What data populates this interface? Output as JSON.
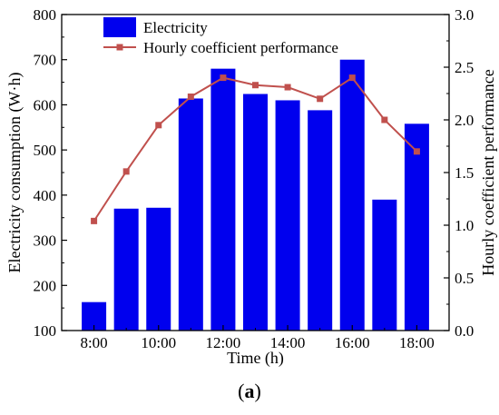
{
  "caption": {
    "open": "(",
    "letter": "a",
    "close": ")"
  },
  "chart_data": {
    "type": "bar",
    "x": [
      8,
      9,
      10,
      11,
      12,
      13,
      14,
      15,
      16,
      17,
      18
    ],
    "xlabel": "Time (h)",
    "xticks": [
      8,
      10,
      12,
      14,
      16,
      18
    ],
    "xtick_labels": [
      "8:00",
      "10:00",
      "12:00",
      "14:00",
      "16:00",
      "18:00"
    ],
    "xlim": [
      7,
      19
    ],
    "ylabel": "Electricity consumption (W·h)",
    "ylim": [
      100,
      800
    ],
    "yticks": [
      100,
      200,
      300,
      400,
      500,
      600,
      700,
      800
    ],
    "y2label": "Hourly coefficient performance",
    "y2lim": [
      0,
      3
    ],
    "y2ticks": [
      "0.0",
      "0.5",
      "1.0",
      "1.5",
      "2.0",
      "2.5",
      "3.0"
    ],
    "legend_position": "top-left",
    "grid": false,
    "series": [
      {
        "name": "Electricity",
        "type": "bar",
        "axis": "left",
        "color": "#0000ee",
        "values": [
          163,
          370,
          372,
          614,
          680,
          624,
          610,
          588,
          700,
          390,
          558
        ]
      },
      {
        "name": "Hourly coefficient performance",
        "type": "line",
        "axis": "right",
        "color": "#c0504d",
        "marker": "square",
        "values": [
          1.04,
          1.51,
          1.95,
          2.22,
          2.4,
          2.33,
          2.31,
          2.2,
          2.4,
          2.0,
          1.7
        ]
      }
    ]
  }
}
